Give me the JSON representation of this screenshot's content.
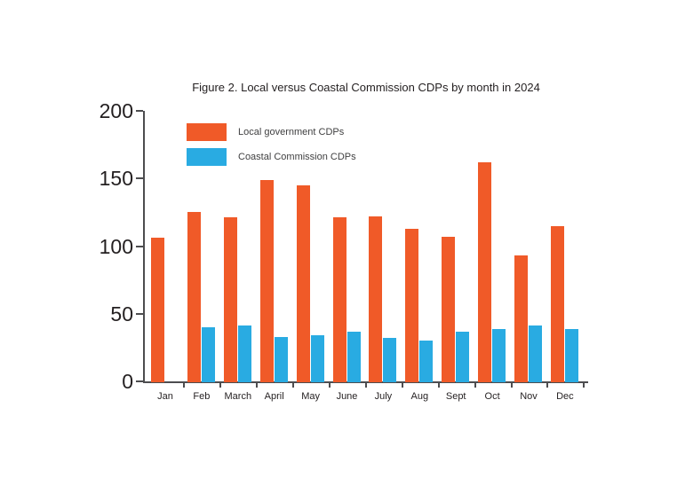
{
  "chart_data": {
    "type": "bar",
    "title": "Figure 2. Local versus Coastal Commission CDPs by month in 2024",
    "categories": [
      "Jan",
      "Feb",
      "March",
      "April",
      "May",
      "June",
      "July",
      "Aug",
      "Sept",
      "Oct",
      "Nov",
      "Dec"
    ],
    "series": [
      {
        "name": "Local government CDPs",
        "color": "#F05A28",
        "values": [
          106,
          125,
          121,
          149,
          145,
          121,
          122,
          113,
          107,
          162,
          93,
          115
        ]
      },
      {
        "name": "Coastal Commission CDPs",
        "color": "#29ABE2",
        "values": [
          0,
          40,
          41,
          33,
          34,
          37,
          32,
          30,
          37,
          39,
          41,
          39
        ]
      }
    ],
    "xlabel": "",
    "ylabel": "",
    "ylim": [
      0,
      200
    ],
    "yticks": [
      0,
      50,
      100,
      150,
      200
    ],
    "grid": false,
    "legend_position": "top-left-inside",
    "axis_color": "#4d4d4f",
    "text_color": "#231f20"
  }
}
